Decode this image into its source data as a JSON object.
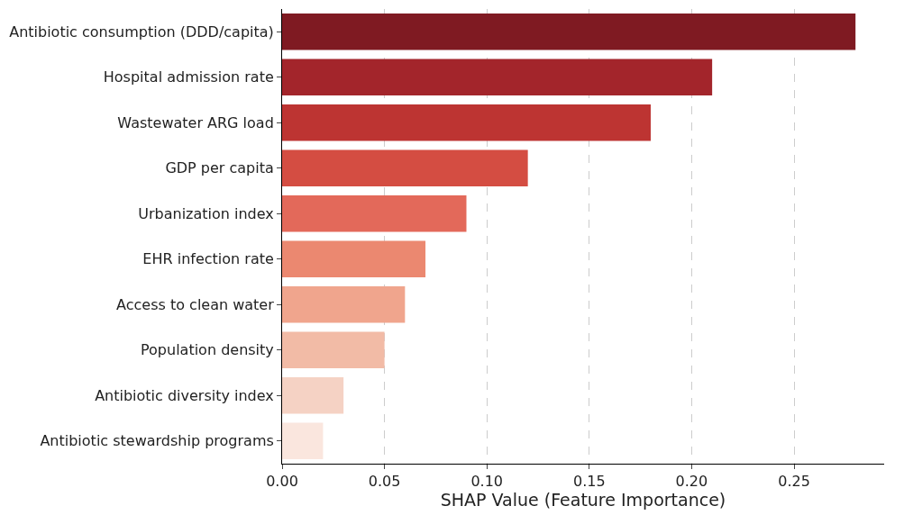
{
  "chart_data": {
    "type": "bar",
    "orientation": "horizontal",
    "xlabel": "SHAP Value (Feature Importance)",
    "categories": [
      "Antibiotic consumption (DDD/capita)",
      "Hospital admission rate",
      "Wastewater ARG load",
      "GDP per capita",
      "Urbanization index",
      "EHR infection rate",
      "Access to clean water",
      "Population density",
      "Antibiotic diversity index",
      "Antibiotic stewardship programs"
    ],
    "values": [
      0.28,
      0.21,
      0.18,
      0.12,
      0.09,
      0.07,
      0.06,
      0.05,
      0.03,
      0.02
    ],
    "colors": [
      "#7f1a22",
      "#a3252b",
      "#bd3432",
      "#d44d42",
      "#e3695a",
      "#eb8870",
      "#f0a58d",
      "#f2bba6",
      "#f5d2c4",
      "#fae6de"
    ],
    "xlim": [
      0,
      0.294
    ],
    "xticks": [
      {
        "value": 0,
        "label": "0.00"
      },
      0.05,
      {
        "value": 0.1,
        "label": "0.10"
      },
      0.15,
      {
        "value": 0.2,
        "label": "0.20"
      },
      0.25
    ],
    "grid": "x"
  }
}
